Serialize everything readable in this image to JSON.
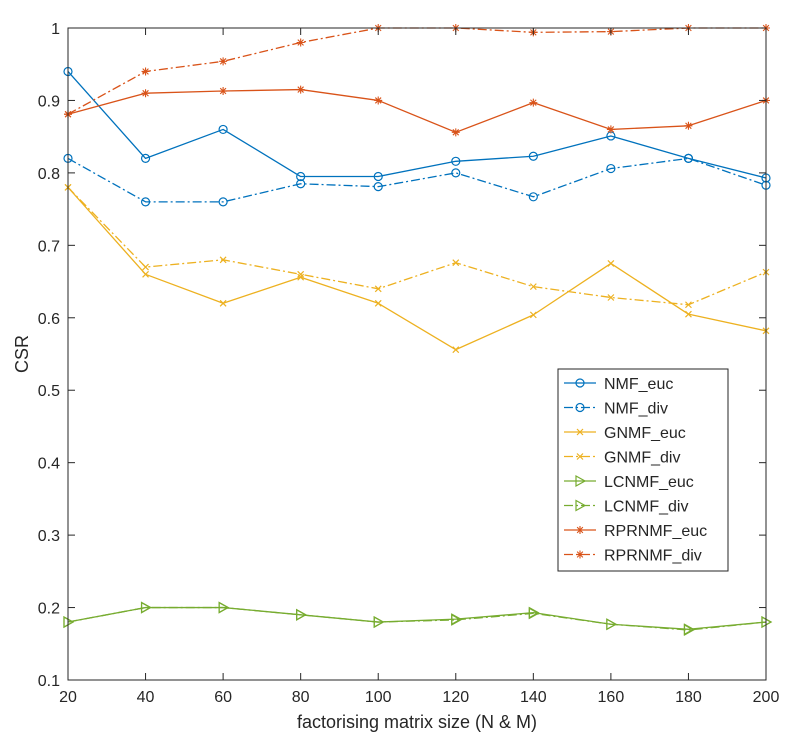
{
  "chart_data": {
    "type": "line",
    "title": "",
    "xlabel": "factorising matrix size (N & M)",
    "ylabel": "CSR",
    "x": [
      20,
      40,
      60,
      80,
      100,
      120,
      140,
      160,
      180,
      200
    ],
    "xlim": [
      20,
      200
    ],
    "ylim": [
      0.1,
      1
    ],
    "xticks": [
      "20",
      "40",
      "60",
      "80",
      "100",
      "120",
      "140",
      "160",
      "180",
      "200"
    ],
    "yticks": [
      "0.1",
      "0.2",
      "0.3",
      "0.4",
      "0.5",
      "0.6",
      "0.7",
      "0.8",
      "0.9",
      "1"
    ],
    "grid": false,
    "legend_position": "right, middle",
    "series": [
      {
        "name": "NMF_euc",
        "color": "#0072BD",
        "line": "solid",
        "marker": "circle",
        "values": [
          0.94,
          0.82,
          0.86,
          0.795,
          0.795,
          0.816,
          0.823,
          0.851,
          0.82,
          0.793
        ]
      },
      {
        "name": "NMF_div",
        "color": "#0072BD",
        "line": "dashdot",
        "marker": "circle",
        "values": [
          0.82,
          0.76,
          0.76,
          0.785,
          0.781,
          0.8,
          0.767,
          0.806,
          0.82,
          0.783
        ]
      },
      {
        "name": "GNMF_euc",
        "color": "#EDB120",
        "line": "solid",
        "marker": "x",
        "values": [
          0.78,
          0.66,
          0.62,
          0.656,
          0.62,
          0.556,
          0.604,
          0.675,
          0.605,
          0.582
        ]
      },
      {
        "name": "GNMF_div",
        "color": "#EDB120",
        "line": "dashdot",
        "marker": "x",
        "values": [
          0.78,
          0.67,
          0.68,
          0.66,
          0.64,
          0.676,
          0.643,
          0.628,
          0.618,
          0.663
        ]
      },
      {
        "name": "LCNMF_euc",
        "color": "#77AC30",
        "line": "solid",
        "marker": "triangle-right",
        "values": [
          0.18,
          0.2,
          0.2,
          0.19,
          0.18,
          0.184,
          0.193,
          0.177,
          0.17,
          0.18
        ]
      },
      {
        "name": "LCNMF_div",
        "color": "#77AC30",
        "line": "dashdot",
        "marker": "triangle-right",
        "values": [
          0.18,
          0.2,
          0.2,
          0.19,
          0.18,
          0.183,
          0.192,
          0.177,
          0.169,
          0.18
        ]
      },
      {
        "name": "RPRNMF_euc",
        "color": "#D95319",
        "line": "solid",
        "marker": "asterisk",
        "values": [
          0.881,
          0.91,
          0.913,
          0.915,
          0.9,
          0.856,
          0.897,
          0.86,
          0.865,
          0.9
        ]
      },
      {
        "name": "RPRNMF_div",
        "color": "#D95319",
        "line": "dashdot",
        "marker": "asterisk",
        "values": [
          0.881,
          0.94,
          0.954,
          0.98,
          1.0,
          1.0,
          0.994,
          0.995,
          1.0,
          1.0
        ]
      }
    ]
  }
}
